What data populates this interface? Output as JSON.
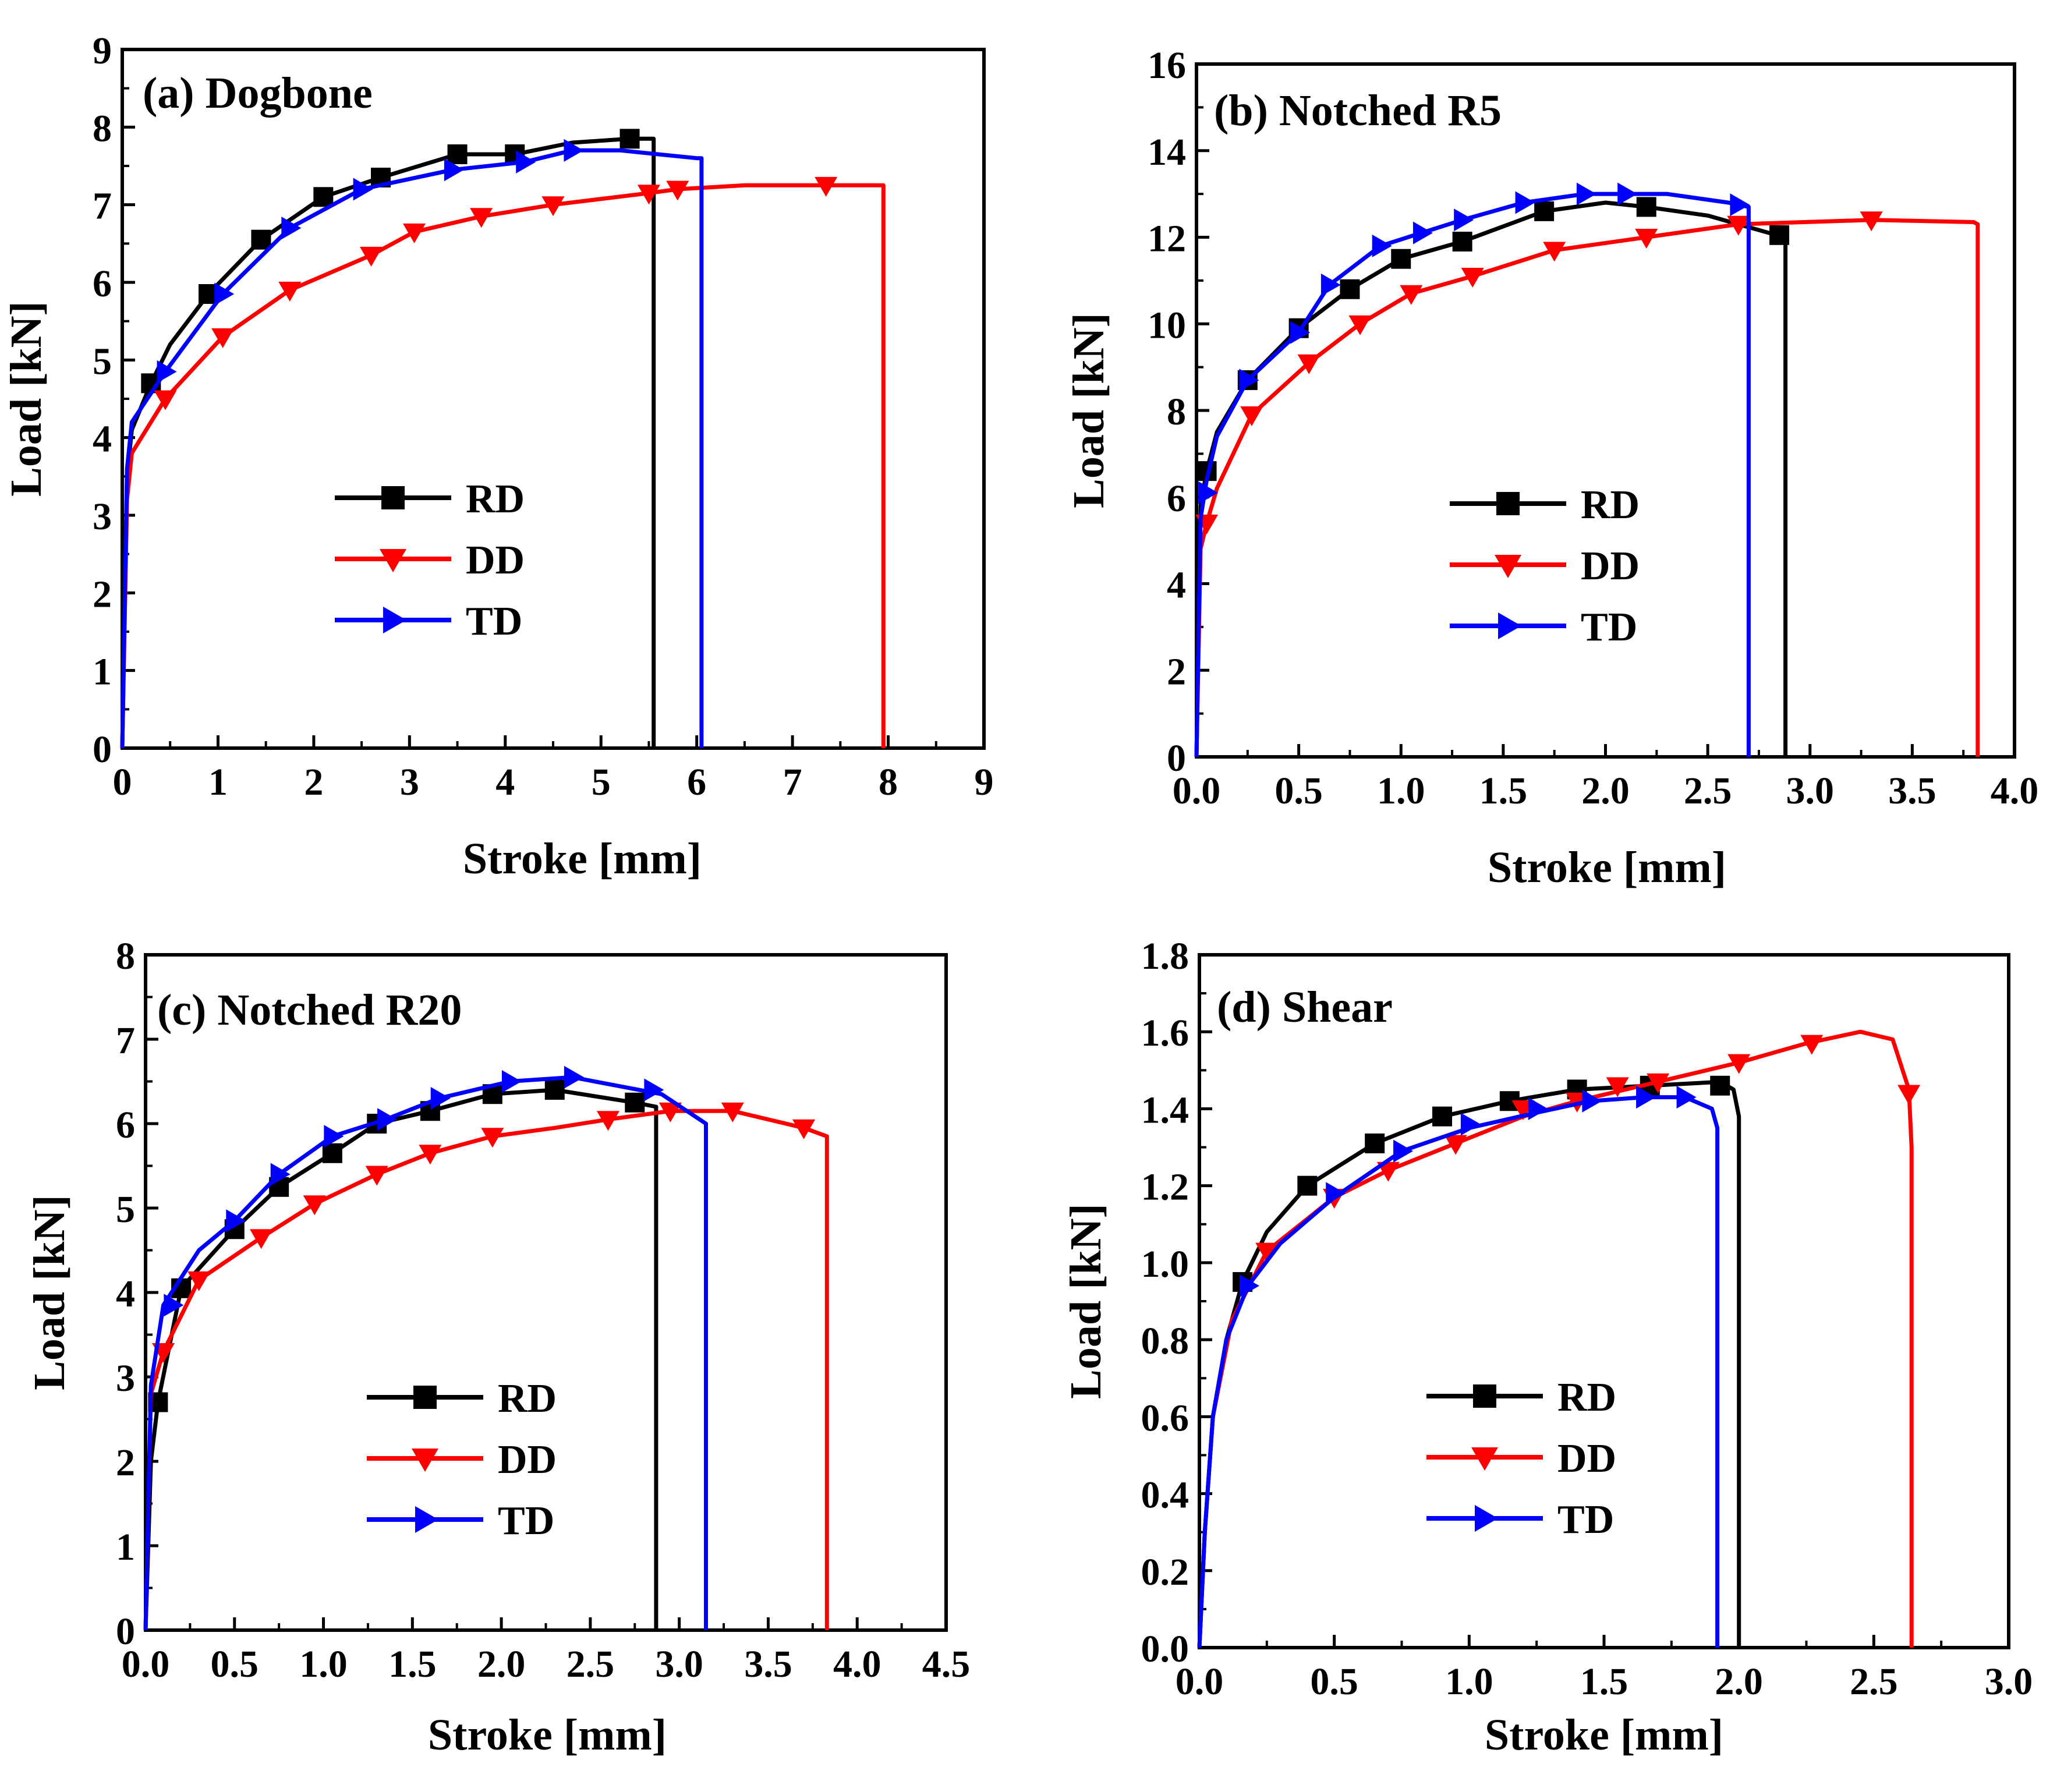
{
  "colors": {
    "RD": "#000000",
    "DD": "#ff0000",
    "TD": "#0000ff",
    "axis": "#000000"
  },
  "legend": {
    "items": [
      {
        "key": "RD",
        "label": "RD",
        "marker": "square"
      },
      {
        "key": "DD",
        "label": "DD",
        "marker": "triangle-down"
      },
      {
        "key": "TD",
        "label": "TD",
        "marker": "triangle-right"
      }
    ]
  },
  "chart_data": [
    {
      "id": "a",
      "type": "line",
      "title": "(a) Dogbone",
      "xlabel": "Stroke [mm]",
      "ylabel": "Load [kN]",
      "xlim": [
        0,
        9
      ],
      "ylim": [
        0,
        9
      ],
      "xticks": [
        0,
        1,
        2,
        3,
        4,
        5,
        6,
        7,
        8,
        9
      ],
      "xtick_labels": [
        "0",
        "1",
        "2",
        "3",
        "4",
        "5",
        "6",
        "7",
        "8",
        "9"
      ],
      "yticks": [
        0,
        1,
        2,
        3,
        4,
        5,
        6,
        7,
        8,
        9
      ],
      "ytick_labels": [
        "0",
        "1",
        "2",
        "3",
        "4",
        "5",
        "6",
        "7",
        "8",
        "9"
      ],
      "legend_position": "center-left",
      "series": [
        {
          "name": "RD",
          "x": [
            0,
            0.05,
            0.1,
            0.3,
            0.5,
            0.9,
            1.45,
            2.1,
            2.7,
            3.5,
            4.1,
            4.7,
            5.3,
            5.55,
            5.55
          ],
          "y": [
            0,
            3.5,
            4.1,
            4.7,
            5.2,
            5.85,
            6.55,
            7.1,
            7.35,
            7.65,
            7.65,
            7.8,
            7.85,
            7.85,
            0
          ],
          "markers": [
            [
              0.3,
              4.7
            ],
            [
              0.9,
              5.85
            ],
            [
              1.45,
              6.55
            ],
            [
              2.1,
              7.1
            ],
            [
              2.7,
              7.35
            ],
            [
              3.5,
              7.65
            ],
            [
              4.1,
              7.65
            ],
            [
              5.3,
              7.85
            ]
          ]
        },
        {
          "name": "DD",
          "x": [
            0,
            0.05,
            0.1,
            0.45,
            1.05,
            1.75,
            2.6,
            3.05,
            3.75,
            4.5,
            5.5,
            5.8,
            6.5,
            7.35,
            7.95,
            7.95
          ],
          "y": [
            0,
            3.2,
            3.8,
            4.5,
            5.3,
            5.9,
            6.35,
            6.65,
            6.85,
            7.0,
            7.15,
            7.2,
            7.25,
            7.25,
            7.25,
            0
          ],
          "markers": [
            [
              0.45,
              4.5
            ],
            [
              1.05,
              5.3
            ],
            [
              1.75,
              5.9
            ],
            [
              2.6,
              6.35
            ],
            [
              3.05,
              6.65
            ],
            [
              3.75,
              6.85
            ],
            [
              4.5,
              7.0
            ],
            [
              5.5,
              7.15
            ],
            [
              5.8,
              7.2
            ],
            [
              7.35,
              7.25
            ]
          ]
        },
        {
          "name": "TD",
          "x": [
            0,
            0.05,
            0.1,
            0.45,
            1.05,
            1.75,
            2.5,
            3.45,
            4.2,
            4.7,
            5.2,
            6.0,
            6.05,
            6.05
          ],
          "y": [
            0,
            3.6,
            4.2,
            4.85,
            5.85,
            6.7,
            7.2,
            7.45,
            7.55,
            7.7,
            7.7,
            7.6,
            7.6,
            0
          ],
          "markers": [
            [
              0.45,
              4.85
            ],
            [
              1.05,
              5.85
            ],
            [
              1.75,
              6.7
            ],
            [
              2.5,
              7.2
            ],
            [
              3.45,
              7.45
            ],
            [
              4.2,
              7.55
            ],
            [
              4.7,
              7.7
            ]
          ]
        }
      ]
    },
    {
      "id": "b",
      "type": "line",
      "title": "(b) Notched R5",
      "xlabel": "Stroke [mm]",
      "ylabel": "Load [kN]",
      "xlim": [
        0,
        4
      ],
      "ylim": [
        0,
        16
      ],
      "xticks": [
        0,
        0.5,
        1,
        1.5,
        2,
        2.5,
        3,
        3.5,
        4
      ],
      "xtick_labels": [
        "0.0",
        "0.5",
        "1.0",
        "1.5",
        "2.0",
        "2.5",
        "3.0",
        "3.5",
        "4.0"
      ],
      "yticks": [
        0,
        2,
        4,
        6,
        8,
        10,
        12,
        14,
        16
      ],
      "ytick_labels": [
        "0",
        "2",
        "4",
        "6",
        "8",
        "10",
        "12",
        "14",
        "16"
      ],
      "legend_position": "center",
      "series": [
        {
          "name": "RD",
          "x": [
            0,
            0.02,
            0.05,
            0.1,
            0.25,
            0.5,
            0.75,
            1.0,
            1.3,
            1.7,
            2.0,
            2.2,
            2.5,
            2.8,
            2.88,
            2.88
          ],
          "y": [
            0,
            5.8,
            6.6,
            7.5,
            8.7,
            9.9,
            10.8,
            11.5,
            11.9,
            12.6,
            12.8,
            12.7,
            12.5,
            12.1,
            12.0,
            0
          ],
          "markers": [
            [
              0.05,
              6.6
            ],
            [
              0.25,
              8.7
            ],
            [
              0.5,
              9.9
            ],
            [
              0.75,
              10.8
            ],
            [
              1.0,
              11.5
            ],
            [
              1.3,
              11.9
            ],
            [
              1.7,
              12.6
            ],
            [
              2.2,
              12.7
            ],
            [
              2.85,
              12.05
            ]
          ]
        },
        {
          "name": "DD",
          "x": [
            0,
            0.02,
            0.05,
            0.1,
            0.27,
            0.55,
            0.8,
            1.05,
            1.35,
            1.75,
            2.2,
            2.65,
            3.3,
            3.8,
            3.82,
            3.82
          ],
          "y": [
            0,
            4.8,
            5.4,
            6.2,
            7.9,
            9.1,
            10.0,
            10.7,
            11.1,
            11.7,
            12.0,
            12.3,
            12.4,
            12.35,
            12.3,
            0
          ],
          "markers": [
            [
              0.05,
              5.4
            ],
            [
              0.27,
              7.9
            ],
            [
              0.55,
              9.1
            ],
            [
              0.8,
              10.0
            ],
            [
              1.05,
              10.7
            ],
            [
              1.35,
              11.1
            ],
            [
              1.75,
              11.7
            ],
            [
              2.2,
              12.0
            ],
            [
              2.65,
              12.3
            ],
            [
              3.3,
              12.4
            ]
          ]
        },
        {
          "name": "TD",
          "x": [
            0,
            0.02,
            0.05,
            0.1,
            0.25,
            0.5,
            0.65,
            0.9,
            1.1,
            1.3,
            1.6,
            1.9,
            2.1,
            2.3,
            2.6,
            2.7,
            2.7
          ],
          "y": [
            0,
            5.5,
            6.4,
            7.4,
            8.7,
            9.8,
            10.9,
            11.8,
            12.1,
            12.4,
            12.8,
            13.0,
            13.0,
            13.0,
            12.8,
            12.7,
            0
          ],
          "markers": [
            [
              0.05,
              6.1
            ],
            [
              0.25,
              8.7
            ],
            [
              0.5,
              9.8
            ],
            [
              0.65,
              10.9
            ],
            [
              0.9,
              11.8
            ],
            [
              1.1,
              12.1
            ],
            [
              1.3,
              12.4
            ],
            [
              1.6,
              12.8
            ],
            [
              1.9,
              13.0
            ],
            [
              2.1,
              13.0
            ],
            [
              2.65,
              12.75
            ]
          ]
        }
      ]
    },
    {
      "id": "c",
      "type": "line",
      "title": "(c) Notched R20",
      "xlabel": "Stroke [mm]",
      "ylabel": "Load [kN]",
      "xlim": [
        0,
        4.5
      ],
      "ylim": [
        0,
        8
      ],
      "xticks": [
        0,
        0.5,
        1,
        1.5,
        2,
        2.5,
        3,
        3.5,
        4,
        4.5
      ],
      "xtick_labels": [
        "0.0",
        "0.5",
        "1.0",
        "1.5",
        "2.0",
        "2.5",
        "3.0",
        "3.5",
        "4.0",
        "4.5"
      ],
      "yticks": [
        0,
        1,
        2,
        3,
        4,
        5,
        6,
        7,
        8
      ],
      "ytick_labels": [
        "0",
        "1",
        "2",
        "3",
        "4",
        "5",
        "6",
        "7",
        "8"
      ],
      "legend_position": "center-right",
      "series": [
        {
          "name": "RD",
          "x": [
            0,
            0.03,
            0.07,
            0.2,
            0.5,
            0.75,
            1.05,
            1.3,
            1.6,
            1.95,
            2.3,
            2.75,
            2.87,
            2.87
          ],
          "y": [
            0,
            2.0,
            2.7,
            4.05,
            4.75,
            5.25,
            5.65,
            6.0,
            6.15,
            6.35,
            6.4,
            6.25,
            6.2,
            0
          ],
          "markers": [
            [
              0.07,
              2.7
            ],
            [
              0.2,
              4.05
            ],
            [
              0.5,
              4.75
            ],
            [
              0.75,
              5.25
            ],
            [
              1.05,
              5.65
            ],
            [
              1.3,
              6.0
            ],
            [
              1.6,
              6.15
            ],
            [
              1.95,
              6.35
            ],
            [
              2.3,
              6.4
            ],
            [
              2.75,
              6.25
            ]
          ]
        },
        {
          "name": "DD",
          "x": [
            0,
            0.03,
            0.1,
            0.3,
            0.65,
            0.95,
            1.3,
            1.6,
            1.95,
            2.3,
            2.6,
            2.95,
            3.3,
            3.7,
            3.83,
            3.83
          ],
          "y": [
            0,
            2.8,
            3.3,
            4.15,
            4.65,
            5.05,
            5.4,
            5.65,
            5.85,
            5.95,
            6.05,
            6.15,
            6.15,
            5.95,
            5.85,
            0
          ],
          "markers": [
            [
              0.1,
              3.3
            ],
            [
              0.3,
              4.15
            ],
            [
              0.65,
              4.65
            ],
            [
              0.95,
              5.05
            ],
            [
              1.3,
              5.4
            ],
            [
              1.6,
              5.65
            ],
            [
              1.95,
              5.85
            ],
            [
              2.6,
              6.05
            ],
            [
              2.95,
              6.15
            ],
            [
              3.3,
              6.15
            ],
            [
              3.7,
              5.95
            ]
          ]
        },
        {
          "name": "TD",
          "x": [
            0,
            0.03,
            0.1,
            0.3,
            0.5,
            0.75,
            1.05,
            1.35,
            1.65,
            2.05,
            2.4,
            2.9,
            3.15,
            3.15
          ],
          "y": [
            0,
            2.9,
            3.85,
            4.5,
            4.85,
            5.4,
            5.85,
            6.05,
            6.3,
            6.5,
            6.55,
            6.35,
            6.0,
            0
          ],
          "markers": [
            [
              0.15,
              3.85
            ],
            [
              0.5,
              4.85
            ],
            [
              0.75,
              5.4
            ],
            [
              1.05,
              5.85
            ],
            [
              1.35,
              6.05
            ],
            [
              1.65,
              6.3
            ],
            [
              2.05,
              6.5
            ],
            [
              2.4,
              6.55
            ],
            [
              2.85,
              6.4
            ]
          ]
        }
      ]
    },
    {
      "id": "d",
      "type": "line",
      "title": "(d) Shear",
      "xlabel": "Stroke [mm]",
      "ylabel": "Load [kN]",
      "xlim": [
        0,
        3
      ],
      "ylim": [
        0,
        1.8
      ],
      "xticks": [
        0,
        0.5,
        1,
        1.5,
        2,
        2.5,
        3
      ],
      "xtick_labels": [
        "0.0",
        "0.5",
        "1.0",
        "1.5",
        "2.0",
        "2.5",
        "3.0"
      ],
      "yticks": [
        0,
        0.2,
        0.4,
        0.6,
        0.8,
        1.0,
        1.2,
        1.4,
        1.6,
        1.8
      ],
      "ytick_labels": [
        "0.0",
        "0.2",
        "0.4",
        "0.6",
        "0.8",
        "1.0",
        "1.2",
        "1.4",
        "1.6",
        "1.8"
      ],
      "legend_position": "center",
      "series": [
        {
          "name": "RD",
          "x": [
            0,
            0.02,
            0.05,
            0.1,
            0.16,
            0.25,
            0.4,
            0.65,
            0.9,
            1.15,
            1.4,
            1.67,
            1.93,
            1.98,
            2.0,
            2.0
          ],
          "y": [
            0,
            0.3,
            0.6,
            0.8,
            0.95,
            1.08,
            1.2,
            1.31,
            1.38,
            1.42,
            1.45,
            1.46,
            1.47,
            1.45,
            1.38,
            0
          ],
          "markers": [
            [
              0.16,
              0.95
            ],
            [
              0.4,
              1.2
            ],
            [
              0.65,
              1.31
            ],
            [
              0.9,
              1.38
            ],
            [
              1.15,
              1.42
            ],
            [
              1.4,
              1.45
            ],
            [
              1.67,
              1.46
            ],
            [
              1.93,
              1.46
            ]
          ]
        },
        {
          "name": "DD",
          "x": [
            0,
            0.02,
            0.05,
            0.12,
            0.25,
            0.5,
            0.7,
            0.95,
            1.2,
            1.4,
            1.7,
            2.0,
            2.25,
            2.45,
            2.57,
            2.63,
            2.64,
            2.64
          ],
          "y": [
            0,
            0.3,
            0.6,
            0.85,
            1.03,
            1.17,
            1.24,
            1.31,
            1.38,
            1.42,
            1.47,
            1.52,
            1.57,
            1.6,
            1.58,
            1.45,
            1.3,
            0
          ],
          "markers": [
            [
              0.25,
              1.03
            ],
            [
              0.5,
              1.17
            ],
            [
              0.7,
              1.24
            ],
            [
              0.95,
              1.31
            ],
            [
              1.2,
              1.4
            ],
            [
              1.4,
              1.42
            ],
            [
              1.55,
              1.46
            ],
            [
              1.7,
              1.47
            ],
            [
              2.0,
              1.52
            ],
            [
              2.27,
              1.57
            ],
            [
              2.63,
              1.44
            ]
          ]
        },
        {
          "name": "TD",
          "x": [
            0,
            0.02,
            0.05,
            0.1,
            0.18,
            0.3,
            0.5,
            0.75,
            1.0,
            1.25,
            1.45,
            1.65,
            1.8,
            1.9,
            1.92,
            1.92
          ],
          "y": [
            0,
            0.3,
            0.6,
            0.8,
            0.94,
            1.05,
            1.17,
            1.29,
            1.35,
            1.39,
            1.42,
            1.43,
            1.43,
            1.4,
            1.35,
            0
          ],
          "markers": [
            [
              0.18,
              0.94
            ],
            [
              0.5,
              1.18
            ],
            [
              0.75,
              1.29
            ],
            [
              1.0,
              1.36
            ],
            [
              1.25,
              1.4
            ],
            [
              1.45,
              1.42
            ],
            [
              1.65,
              1.43
            ],
            [
              1.8,
              1.43
            ]
          ]
        }
      ]
    }
  ]
}
